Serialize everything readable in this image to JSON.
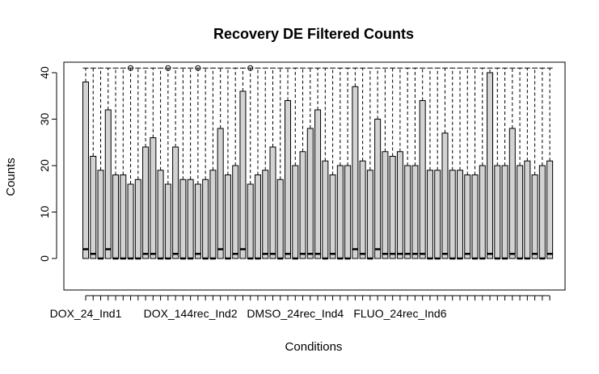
{
  "chart_data": {
    "type": "boxplot",
    "title": "Recovery DE Filtered Counts",
    "xlabel": "Conditions",
    "ylabel": "Counts",
    "ylim": [
      -7,
      41
    ],
    "yticks": [
      0,
      10,
      20,
      30,
      40
    ],
    "x_tick_labels": [
      {
        "index": 1,
        "label": "DOX_24_Ind1"
      },
      {
        "index": 15,
        "label": "DOX_144rec_Ind2"
      },
      {
        "index": 29,
        "label": "DMSO_24rec_Ind4"
      },
      {
        "index": 43,
        "label": "FLUO_24rec_Ind6"
      }
    ],
    "outlier_value": 41,
    "boxes": [
      {
        "upper": 38,
        "median": 2,
        "outlier": false
      },
      {
        "upper": 22,
        "median": 1,
        "outlier": false
      },
      {
        "upper": 19,
        "median": 0,
        "outlier": false
      },
      {
        "upper": 32,
        "median": 2,
        "outlier": false
      },
      {
        "upper": 18,
        "median": 0,
        "outlier": false
      },
      {
        "upper": 18,
        "median": 0,
        "outlier": false
      },
      {
        "upper": 16,
        "median": 0,
        "outlier": true
      },
      {
        "upper": 17,
        "median": 0,
        "outlier": false
      },
      {
        "upper": 24,
        "median": 1,
        "outlier": false
      },
      {
        "upper": 26,
        "median": 1,
        "outlier": false
      },
      {
        "upper": 19,
        "median": 0,
        "outlier": false
      },
      {
        "upper": 16,
        "median": 0,
        "outlier": true
      },
      {
        "upper": 24,
        "median": 1,
        "outlier": false
      },
      {
        "upper": 17,
        "median": 0,
        "outlier": false
      },
      {
        "upper": 17,
        "median": 0,
        "outlier": false
      },
      {
        "upper": 16,
        "median": 1,
        "outlier": true
      },
      {
        "upper": 17,
        "median": 0,
        "outlier": false
      },
      {
        "upper": 19,
        "median": 0,
        "outlier": false
      },
      {
        "upper": 28,
        "median": 2,
        "outlier": false
      },
      {
        "upper": 18,
        "median": 0,
        "outlier": false
      },
      {
        "upper": 20,
        "median": 1,
        "outlier": false
      },
      {
        "upper": 36,
        "median": 2,
        "outlier": false
      },
      {
        "upper": 16,
        "median": 0,
        "outlier": true
      },
      {
        "upper": 18,
        "median": 0,
        "outlier": false
      },
      {
        "upper": 19,
        "median": 1,
        "outlier": false
      },
      {
        "upper": 24,
        "median": 1,
        "outlier": false
      },
      {
        "upper": 17,
        "median": 0,
        "outlier": false
      },
      {
        "upper": 34,
        "median": 1,
        "outlier": false
      },
      {
        "upper": 20,
        "median": 0,
        "outlier": false
      },
      {
        "upper": 23,
        "median": 1,
        "outlier": false
      },
      {
        "upper": 28,
        "median": 1,
        "outlier": false
      },
      {
        "upper": 32,
        "median": 1,
        "outlier": false
      },
      {
        "upper": 21,
        "median": 0,
        "outlier": false
      },
      {
        "upper": 18,
        "median": 1,
        "outlier": false
      },
      {
        "upper": 20,
        "median": 0,
        "outlier": false
      },
      {
        "upper": 20,
        "median": 0,
        "outlier": false
      },
      {
        "upper": 37,
        "median": 2,
        "outlier": false
      },
      {
        "upper": 21,
        "median": 1,
        "outlier": false
      },
      {
        "upper": 19,
        "median": 0,
        "outlier": false
      },
      {
        "upper": 30,
        "median": 2,
        "outlier": false
      },
      {
        "upper": 23,
        "median": 1,
        "outlier": false
      },
      {
        "upper": 22,
        "median": 1,
        "outlier": false
      },
      {
        "upper": 23,
        "median": 1,
        "outlier": false
      },
      {
        "upper": 20,
        "median": 1,
        "outlier": false
      },
      {
        "upper": 20,
        "median": 1,
        "outlier": false
      },
      {
        "upper": 34,
        "median": 1,
        "outlier": false
      },
      {
        "upper": 19,
        "median": 0,
        "outlier": false
      },
      {
        "upper": 19,
        "median": 0,
        "outlier": false
      },
      {
        "upper": 27,
        "median": 1,
        "outlier": false
      },
      {
        "upper": 19,
        "median": 0,
        "outlier": false
      },
      {
        "upper": 19,
        "median": 0,
        "outlier": false
      },
      {
        "upper": 18,
        "median": 1,
        "outlier": false
      },
      {
        "upper": 18,
        "median": 0,
        "outlier": false
      },
      {
        "upper": 20,
        "median": 0,
        "outlier": false
      },
      {
        "upper": 40,
        "median": 1,
        "outlier": false
      },
      {
        "upper": 20,
        "median": 0,
        "outlier": false
      },
      {
        "upper": 20,
        "median": 0,
        "outlier": false
      },
      {
        "upper": 28,
        "median": 1,
        "outlier": false
      },
      {
        "upper": 20,
        "median": 0,
        "outlier": false
      },
      {
        "upper": 21,
        "median": 0,
        "outlier": false
      },
      {
        "upper": 18,
        "median": 1,
        "outlier": false
      },
      {
        "upper": 20,
        "median": 0,
        "outlier": false
      },
      {
        "upper": 21,
        "median": 1,
        "outlier": false
      }
    ],
    "whisker_max": 41,
    "box_lower": 0,
    "grid": false,
    "colors": {
      "box_fill": "#d3d3d3",
      "stroke": "#000000",
      "background": "#ffffff"
    }
  }
}
